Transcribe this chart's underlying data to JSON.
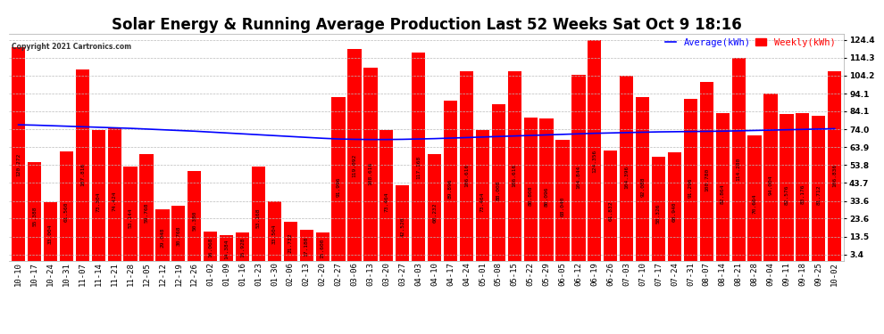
{
  "title": "Solar Energy & Running Average Production Last 52 Weeks Sat Oct 9 18:16",
  "copyright": "Copyright 2021 Cartronics.com",
  "legend_avg": "Average(kWh)",
  "legend_weekly": "Weekly(kWh)",
  "bar_color": "#ff0000",
  "avg_line_color": "#0000ff",
  "weekly_color": "#ff0000",
  "background_color": "#ffffff",
  "grid_color": "#bbbbbb",
  "yticks": [
    3.4,
    13.5,
    23.6,
    33.6,
    43.7,
    53.8,
    63.9,
    74.0,
    84.1,
    94.1,
    104.2,
    114.3,
    124.4
  ],
  "ylim": [
    0,
    128
  ],
  "categories": [
    "10-10",
    "10-17",
    "10-24",
    "10-31",
    "11-07",
    "11-14",
    "11-21",
    "11-28",
    "12-05",
    "12-12",
    "12-19",
    "12-26",
    "01-02",
    "01-09",
    "01-16",
    "01-23",
    "01-30",
    "02-06",
    "02-13",
    "02-20",
    "02-27",
    "03-06",
    "03-13",
    "03-20",
    "03-27",
    "04-03",
    "04-10",
    "04-17",
    "04-24",
    "05-01",
    "05-08",
    "05-15",
    "05-22",
    "05-29",
    "06-05",
    "06-12",
    "06-19",
    "06-26",
    "07-03",
    "07-10",
    "07-17",
    "07-24",
    "07-31",
    "08-07",
    "08-14",
    "08-21",
    "08-28",
    "09-04",
    "09-11",
    "09-18",
    "09-25",
    "10-02"
  ],
  "weekly_values": [
    120.272,
    55.388,
    33.004,
    61.56,
    107.816,
    73.304,
    74.424,
    53.144,
    59.768,
    29.048,
    30.768,
    50.38,
    16.068,
    14.384,
    15.928,
    53.168,
    33.504,
    21.732,
    17.18,
    15.6,
    91.996,
    119.092,
    108.616,
    73.464,
    42.52,
    117.168,
    60.232,
    89.896,
    106.616,
    73.464,
    88.008,
    106.616,
    80.808,
    80.096,
    68.04,
    104.844,
    124.356,
    61.832,
    104.396,
    92.088,
    58.326,
    60.94,
    91.296,
    100.78,
    82.864,
    114.28,
    70.664,
    94.004,
    82.576,
    83.176,
    81.712,
    106.836
  ],
  "avg_values": [
    76.5,
    76.3,
    76.0,
    75.7,
    75.4,
    75.1,
    74.8,
    74.5,
    74.1,
    73.7,
    73.3,
    72.9,
    72.4,
    71.9,
    71.4,
    70.9,
    70.4,
    69.9,
    69.4,
    68.9,
    68.5,
    68.3,
    68.2,
    68.2,
    68.3,
    68.5,
    68.7,
    69.0,
    69.3,
    69.6,
    69.9,
    70.2,
    70.5,
    70.8,
    71.1,
    71.4,
    71.7,
    71.9,
    72.1,
    72.3,
    72.5,
    72.6,
    72.7,
    72.8,
    72.9,
    73.1,
    73.3,
    73.5,
    73.7,
    73.9,
    74.1,
    74.3
  ],
  "title_fontsize": 12,
  "tick_fontsize": 6.5,
  "label_fontsize": 6,
  "legend_fontsize": 7.5,
  "value_fontsize": 4.5
}
